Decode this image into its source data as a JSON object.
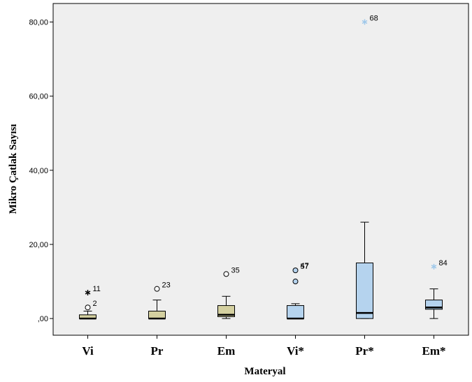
{
  "chart_data": {
    "type": "boxplot",
    "xlabel": "Materyal",
    "ylabel": "Mikro Çatlak Sayısı",
    "ylim": [
      -4.5,
      85
    ],
    "yticks": [
      0,
      20,
      40,
      60,
      80
    ],
    "ytick_labels": [
      ",00",
      "20,00",
      "40,00",
      "60,00",
      "80,00"
    ],
    "grid": false,
    "colors": {
      "group_a": "#d4d0a0",
      "group_b": "#b5d3ee",
      "star_b": "#9fc8ea",
      "plot_bg": "#efefef"
    },
    "boxes": [
      {
        "category": "Vi",
        "color_group": "a",
        "whisker_low": 0,
        "q1": 0,
        "median": 0,
        "q3": 1,
        "whisker_high": 2,
        "outliers": [
          {
            "value": 3,
            "label": "2",
            "marker": "circle"
          },
          {
            "value": 7,
            "label": "11",
            "marker": "star"
          }
        ]
      },
      {
        "category": "Pr",
        "color_group": "a",
        "whisker_low": 0,
        "q1": 0,
        "median": 0,
        "q3": 2,
        "whisker_high": 5,
        "outliers": [
          {
            "value": 8,
            "label": "23",
            "marker": "circle"
          }
        ]
      },
      {
        "category": "Em",
        "color_group": "a",
        "whisker_low": 0,
        "q1": 0.5,
        "median": 1,
        "q3": 3.5,
        "whisker_high": 6,
        "outliers": [
          {
            "value": 12,
            "label": "35",
            "marker": "circle"
          }
        ]
      },
      {
        "category": "Vi*",
        "color_group": "b",
        "whisker_low": 0,
        "q1": 0,
        "median": 0,
        "q3": 3.5,
        "whisker_high": 4,
        "outliers": [
          {
            "value": 10,
            "label": "",
            "marker": "circle"
          },
          {
            "value": 13,
            "label": "57",
            "marker": "circle"
          },
          {
            "value": 13.2,
            "label": "47",
            "marker": "none"
          }
        ]
      },
      {
        "category": "Pr*",
        "color_group": "b",
        "whisker_low": 0,
        "q1": 0,
        "median": 1.5,
        "q3": 15,
        "whisker_high": 26,
        "outliers": [
          {
            "value": 80,
            "label": "68",
            "marker": "star"
          }
        ]
      },
      {
        "category": "Em*",
        "color_group": "b",
        "whisker_low": 0,
        "q1": 2.5,
        "median": 3,
        "q3": 5,
        "whisker_high": 8,
        "outliers": [
          {
            "value": 14,
            "label": "84",
            "marker": "star"
          }
        ]
      }
    ]
  }
}
